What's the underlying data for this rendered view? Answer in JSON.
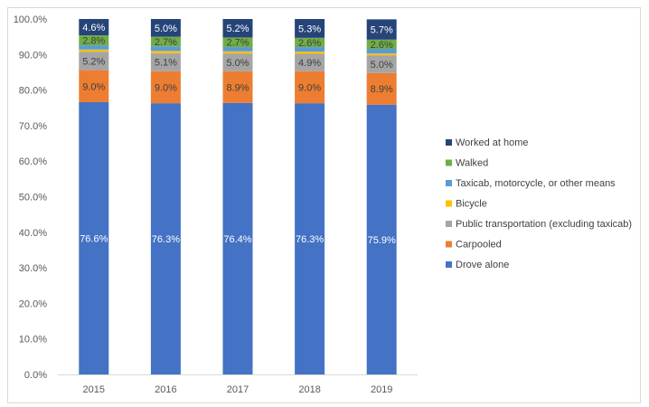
{
  "chart_data": {
    "type": "bar",
    "stacked": true,
    "categories": [
      "2015",
      "2016",
      "2017",
      "2018",
      "2019"
    ],
    "ylim": [
      0,
      100
    ],
    "yticks": [
      "0.0%",
      "10.0%",
      "20.0%",
      "30.0%",
      "40.0%",
      "50.0%",
      "60.0%",
      "70.0%",
      "80.0%",
      "90.0%",
      "100.0%"
    ],
    "grid": false,
    "legend_position": "right",
    "series": [
      {
        "name": "Drove alone",
        "color": "#4472c4",
        "label_color": "#ffffff",
        "values": [
          76.6,
          76.3,
          76.4,
          76.3,
          75.9
        ],
        "labels": [
          "76.6%",
          "76.3%",
          "76.4%",
          "76.3%",
          "75.9%"
        ]
      },
      {
        "name": "Carpooled",
        "color": "#ed7d31",
        "label_color": "#404040",
        "values": [
          9.0,
          9.0,
          8.9,
          9.0,
          8.9
        ],
        "labels": [
          "9.0%",
          "9.0%",
          "8.9%",
          "9.0%",
          "8.9%"
        ]
      },
      {
        "name": "Public transportation (excluding taxicab)",
        "color": "#a5a5a5",
        "label_color": "#404040",
        "values": [
          5.2,
          5.1,
          5.0,
          4.9,
          5.0
        ],
        "labels": [
          "5.2%",
          "5.1%",
          "5.0%",
          "4.9%",
          "5.0%"
        ]
      },
      {
        "name": "Bicycle",
        "color": "#ffc000",
        "label_color": "#404040",
        "values": [
          0.6,
          0.6,
          0.6,
          0.6,
          0.5
        ],
        "labels": []
      },
      {
        "name": "Taxicab, motorcycle, or other means",
        "color": "#5b9bd5",
        "label_color": "#404040",
        "values": [
          1.2,
          1.3,
          1.2,
          1.3,
          1.3
        ],
        "labels": []
      },
      {
        "name": "Walked",
        "color": "#70ad47",
        "label_color": "#404040",
        "values": [
          2.8,
          2.7,
          2.7,
          2.6,
          2.6
        ],
        "labels": [
          "2.8%",
          "2.7%",
          "2.7%",
          "2.6%",
          "2.6%"
        ]
      },
      {
        "name": "Worked at home",
        "color": "#264478",
        "label_color": "#ffffff",
        "values": [
          4.6,
          5.0,
          5.2,
          5.3,
          5.7
        ],
        "labels": [
          "4.6%",
          "5.0%",
          "5.2%",
          "5.3%",
          "5.7%"
        ]
      }
    ]
  }
}
